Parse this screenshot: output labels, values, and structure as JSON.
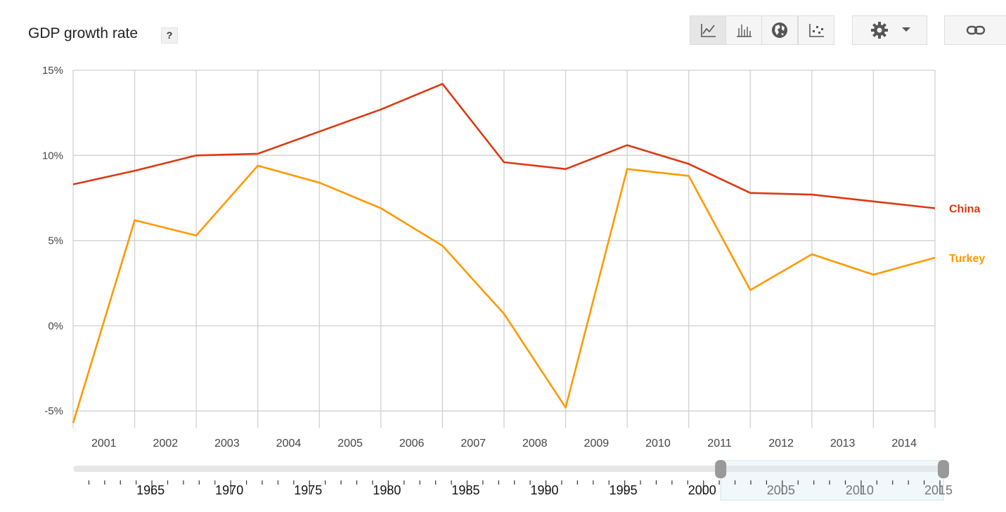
{
  "header": {
    "title": "GDP growth rate",
    "help_label": "?"
  },
  "toolbar": {
    "buttons": [
      {
        "icon": "line-chart-icon",
        "active": true
      },
      {
        "icon": "bar-chart-icon",
        "active": false
      },
      {
        "icon": "globe-icon",
        "active": false
      },
      {
        "icon": "scatter-plot-icon",
        "active": false
      }
    ],
    "settings_icon": "gear-icon",
    "dropdown_icon": "caret-down-icon",
    "link_icon": "link-icon"
  },
  "chart_data": {
    "type": "line",
    "title": "GDP growth rate",
    "x": [
      "2001",
      "2002",
      "2003",
      "2004",
      "2005",
      "2006",
      "2007",
      "2008",
      "2009",
      "2010",
      "2011",
      "2012",
      "2013",
      "2014",
      "2015"
    ],
    "x_tick_labels": [
      "2001",
      "2002",
      "2003",
      "2004",
      "2005",
      "2006",
      "2007",
      "2008",
      "2009",
      "2010",
      "2011",
      "2012",
      "2013",
      "2014"
    ],
    "y_ticks": [
      "15%",
      "10%",
      "5%",
      "0%",
      "-5%"
    ],
    "ylim": [
      -6,
      15
    ],
    "grid": true,
    "series": [
      {
        "name": "China",
        "color": "#dc3912",
        "values": [
          8.3,
          9.1,
          10.0,
          10.1,
          11.4,
          12.7,
          14.2,
          9.6,
          9.2,
          10.6,
          9.5,
          7.8,
          7.7,
          7.3,
          6.9
        ]
      },
      {
        "name": "Turkey",
        "color": "#ff9900",
        "values": [
          -5.7,
          6.2,
          5.3,
          9.4,
          8.4,
          6.9,
          4.7,
          0.7,
          -4.8,
          9.2,
          8.8,
          2.1,
          4.2,
          3.0,
          4.0
        ]
      }
    ],
    "timeline": {
      "labels": [
        "1965",
        "1970",
        "1975",
        "1980",
        "1985",
        "1990",
        "1995",
        "2000",
        "2005",
        "2010",
        "2015"
      ],
      "range": [
        1960,
        2015
      ],
      "selected": [
        2001,
        2015
      ]
    }
  }
}
